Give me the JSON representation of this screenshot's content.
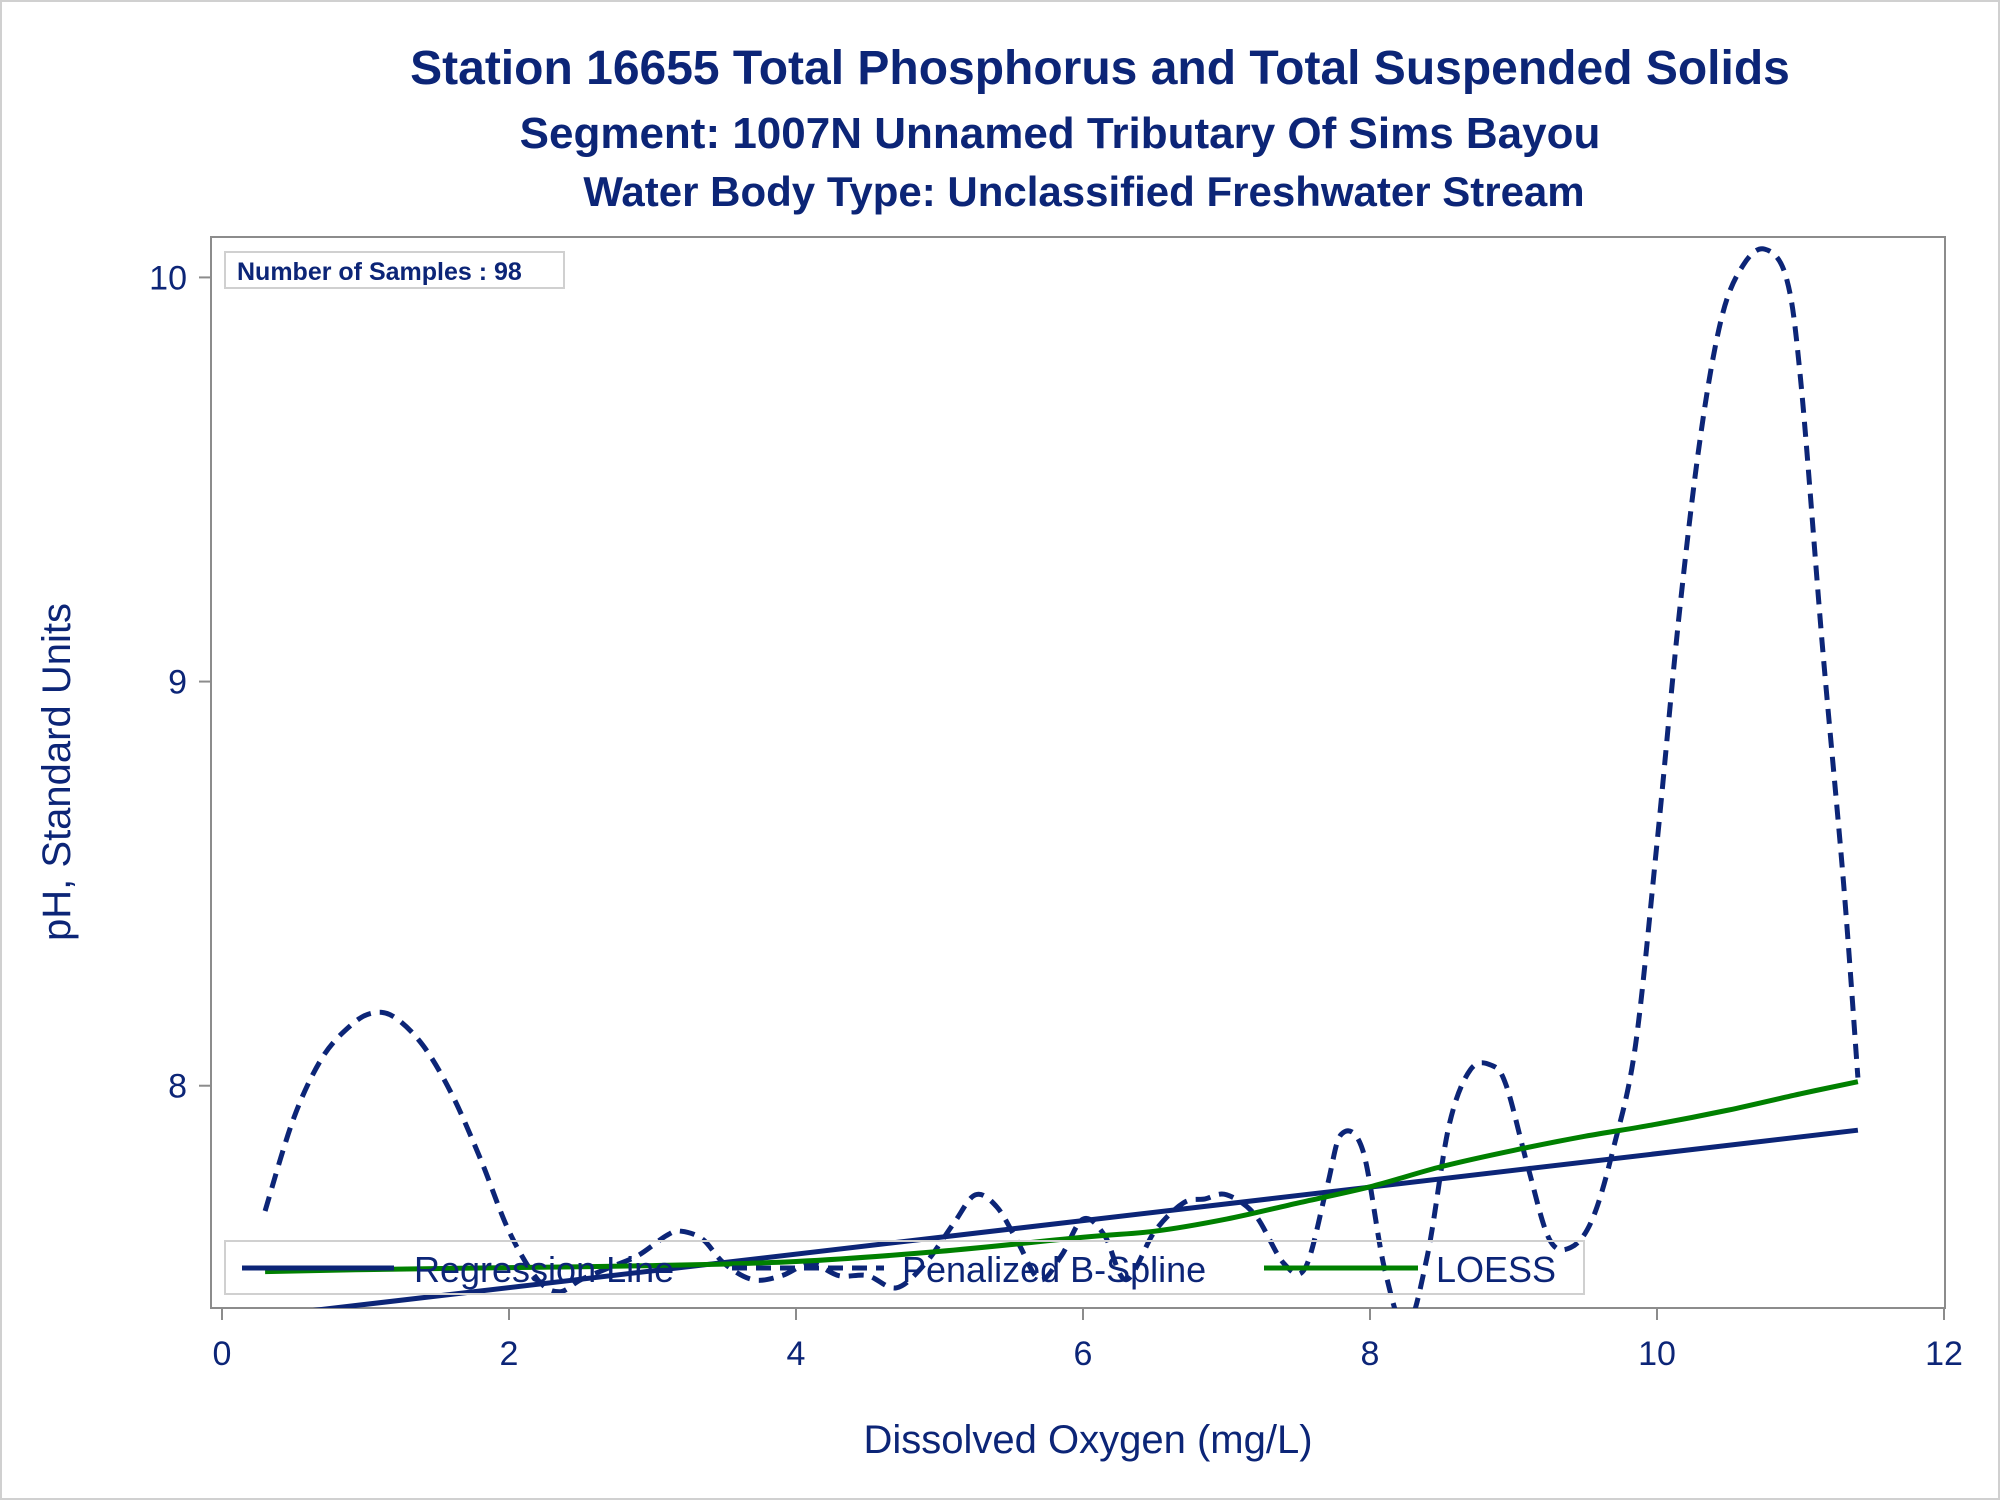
{
  "colors": {
    "text": "#0c2577",
    "regression": "#0c2577",
    "spline": "#0c2577",
    "loess": "#008000",
    "axis": "#8c8c8c",
    "frame": "#d0d0d0"
  },
  "chart_data": {
    "type": "line",
    "title": "Station 16655  Total Phosphorus and Total Suspended Solids",
    "subtitle": "Segment: 1007N  Unnamed Tributary Of Sims Bayou",
    "subtitle2": "Water Body Type: Unclassified Freshwater Stream",
    "xlabel": "Dissolved Oxygen (mg/L)",
    "ylabel": "pH, Standard Units",
    "xlim": [
      0,
      12
    ],
    "ylim": [
      7.45,
      10.1
    ],
    "xticks": [
      0,
      2,
      4,
      6,
      8,
      10,
      12
    ],
    "yticks": [
      8,
      9,
      10
    ],
    "annotation": "Number of Samples : 98",
    "grid": false,
    "legend_position": "bottom-inside",
    "series": [
      {
        "name": "Regression Line",
        "style": "solid",
        "x": [
          0.3,
          11.4
        ],
        "y": [
          7.43,
          7.89
        ]
      },
      {
        "name": "Penalized B-Spline",
        "style": "dashed",
        "x": [
          0.3,
          0.5,
          0.7,
          0.9,
          1.05,
          1.2,
          1.4,
          1.6,
          1.8,
          2.0,
          2.2,
          2.35,
          2.5,
          2.7,
          2.9,
          3.1,
          3.2,
          3.35,
          3.5,
          3.7,
          3.9,
          4.1,
          4.3,
          4.5,
          4.7,
          4.9,
          5.1,
          5.25,
          5.4,
          5.55,
          5.7,
          5.85,
          6.0,
          6.15,
          6.3,
          6.5,
          6.7,
          6.85,
          7.0,
          7.2,
          7.4,
          7.55,
          7.7,
          7.8,
          7.95,
          8.1,
          8.25,
          8.4,
          8.55,
          8.7,
          8.85,
          8.95,
          9.1,
          9.25,
          9.4,
          9.55,
          9.7,
          9.85,
          10.0,
          10.15,
          10.3,
          10.45,
          10.6,
          10.75,
          10.9,
          11.0,
          11.15,
          11.3,
          11.4
        ],
        "y": [
          7.69,
          7.92,
          8.07,
          8.15,
          8.18,
          8.17,
          8.1,
          7.98,
          7.82,
          7.64,
          7.52,
          7.49,
          7.52,
          7.55,
          7.58,
          7.63,
          7.64,
          7.62,
          7.56,
          7.52,
          7.53,
          7.56,
          7.53,
          7.53,
          7.5,
          7.56,
          7.66,
          7.73,
          7.7,
          7.61,
          7.52,
          7.58,
          7.67,
          7.63,
          7.52,
          7.64,
          7.71,
          7.72,
          7.73,
          7.68,
          7.56,
          7.55,
          7.75,
          7.88,
          7.84,
          7.55,
          7.4,
          7.58,
          7.9,
          8.04,
          8.05,
          8.0,
          7.8,
          7.62,
          7.6,
          7.67,
          7.85,
          8.1,
          8.6,
          9.15,
          9.6,
          9.9,
          10.03,
          10.07,
          10.0,
          9.75,
          9.1,
          8.5,
          8.02
        ]
      },
      {
        "name": "LOESS",
        "style": "solid",
        "x": [
          0.3,
          1.0,
          2.0,
          3.0,
          4.0,
          5.0,
          6.0,
          6.5,
          7.0,
          7.5,
          8.0,
          8.5,
          9.0,
          9.5,
          10.0,
          10.5,
          11.0,
          11.4
        ],
        "y": [
          7.54,
          7.545,
          7.55,
          7.555,
          7.565,
          7.59,
          7.625,
          7.64,
          7.67,
          7.71,
          7.75,
          7.8,
          7.84,
          7.875,
          7.905,
          7.94,
          7.98,
          8.01
        ]
      }
    ]
  }
}
